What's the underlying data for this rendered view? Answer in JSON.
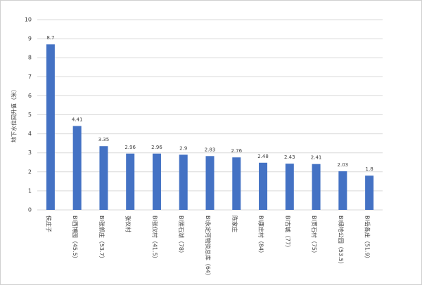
{
  "chart_data": {
    "type": "bar",
    "y_label": "地下水位回升值（米）",
    "categories": [
      "侯庄子",
      "BI西博园（45.5）",
      "BI张郭庄（53.7）",
      "张仪村",
      "BI张仪村（41.5）",
      "BI莲石湖（78）",
      "BI永定河物资总库（64）",
      "陈家庄",
      "BI康庄村（84）",
      "BI古城（77）",
      "BI贯石村（75）",
      "BI绿地公园（53.5）",
      "BI岳各庄（51.9）"
    ],
    "values": [
      8.7,
      4.41,
      3.35,
      2.96,
      2.96,
      2.9,
      2.83,
      2.76,
      2.48,
      2.43,
      2.41,
      2.03,
      1.8
    ],
    "color": "#4472c4",
    "ylim": [
      0,
      10
    ],
    "yticks": [
      0,
      1,
      2,
      3,
      4,
      5,
      6,
      7,
      8,
      9,
      10
    ],
    "grid": true
  }
}
